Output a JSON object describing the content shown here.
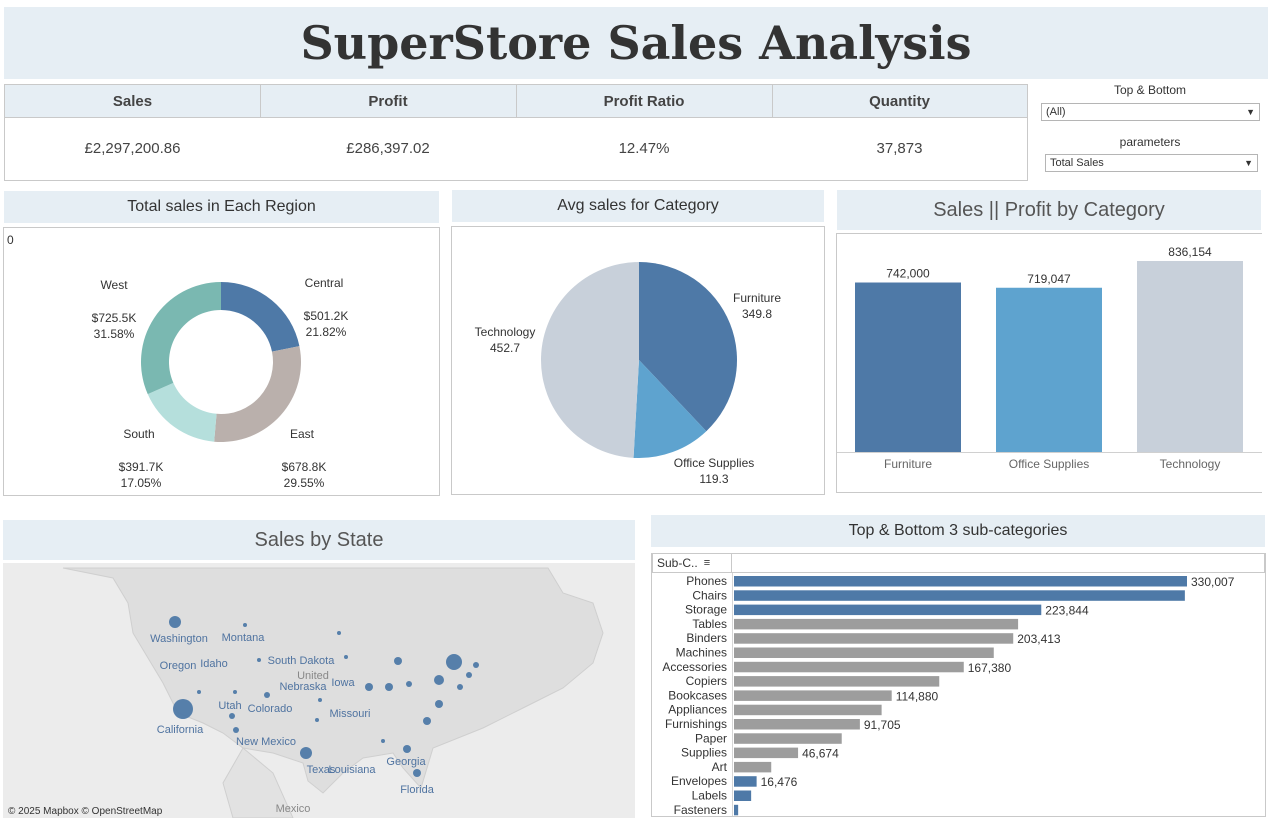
{
  "title": "SuperStore Sales Analysis",
  "kpis": [
    {
      "label": "Sales",
      "value": "£2,297,200.86"
    },
    {
      "label": "Profit",
      "value": "£286,397.02"
    },
    {
      "label": "Profit Ratio",
      "value": "12.47%"
    },
    {
      "label": "Quantity",
      "value": "37,873"
    }
  ],
  "filters": {
    "top_bottom": {
      "label": "Top & Bottom",
      "value": "(All)"
    },
    "parameters": {
      "label": "parameters",
      "value": "Total Sales"
    }
  },
  "map": {
    "title": "Sales by State",
    "attribution": "© 2025 Mapbox © OpenStreetMap",
    "labels": [
      "Washington",
      "Montana",
      "Oregon",
      "Idaho",
      "South Dakota",
      "Nebraska",
      "Iowa",
      "Utah",
      "Colorado",
      "Missouri",
      "California",
      "New Mexico",
      "Texas",
      "Louisiana",
      "Georgia",
      "Florida",
      "Mexico",
      "United"
    ]
  },
  "colors": {
    "blue_dark": "#4e79a7",
    "blue_light": "#5ea3cf",
    "gray_light": "#c8d0da",
    "teal": "#7ab8b1",
    "teal_light": "#b5dfdc",
    "taupe": "#bab0ac",
    "gray_bar": "#9d9d9d"
  },
  "chart_data": [
    {
      "type": "pie",
      "title": "Total sales in Each Region",
      "corner_label": "0",
      "slices": [
        {
          "name": "Central",
          "value": 501.2,
          "label": "$501.2K",
          "pct": "21.82%"
        },
        {
          "name": "East",
          "value": 678.8,
          "label": "$678.8K",
          "pct": "29.55%"
        },
        {
          "name": "South",
          "value": 391.7,
          "label": "$391.7K",
          "pct": "17.05%"
        },
        {
          "name": "West",
          "value": 725.5,
          "label": "$725.5K",
          "pct": "31.58%"
        }
      ]
    },
    {
      "type": "pie",
      "title": "Avg sales for Category",
      "slices": [
        {
          "name": "Furniture",
          "value": 349.8,
          "label": "349.8"
        },
        {
          "name": "Office Supplies",
          "value": 119.3,
          "label": "119.3"
        },
        {
          "name": "Technology",
          "value": 452.7,
          "label": "452.7"
        }
      ]
    },
    {
      "type": "bar",
      "title": "Sales || Profit by Category",
      "categories": [
        "Furniture",
        "Office Supplies",
        "Technology"
      ],
      "values": [
        742000,
        719047,
        836154
      ],
      "labels": [
        "742,000",
        "719,047",
        "836,154"
      ]
    },
    {
      "type": "bar",
      "title": "Top & Bottom 3 sub-categories",
      "column_header": "Sub-C..",
      "categories": [
        "Phones",
        "Chairs",
        "Storage",
        "Tables",
        "Binders",
        "Machines",
        "Accessories",
        "Copiers",
        "Bookcases",
        "Appliances",
        "Furnishings",
        "Paper",
        "Supplies",
        "Art",
        "Envelopes",
        "Labels",
        "Fasteners"
      ],
      "values": [
        330007,
        328449,
        223844,
        206966,
        203413,
        189239,
        167380,
        149528,
        114880,
        107532,
        91705,
        78479,
        46674,
        27119,
        16476,
        12486,
        3024
      ],
      "labels": [
        "330,007",
        "",
        "223,844",
        "",
        "203,413",
        "",
        "167,380",
        "",
        "114,880",
        "",
        "91,705",
        "",
        "46,674",
        "",
        "16,476",
        "",
        ""
      ],
      "highlight": [
        "Phones",
        "Chairs",
        "Storage",
        "Envelopes",
        "Labels",
        "Fasteners"
      ]
    }
  ]
}
